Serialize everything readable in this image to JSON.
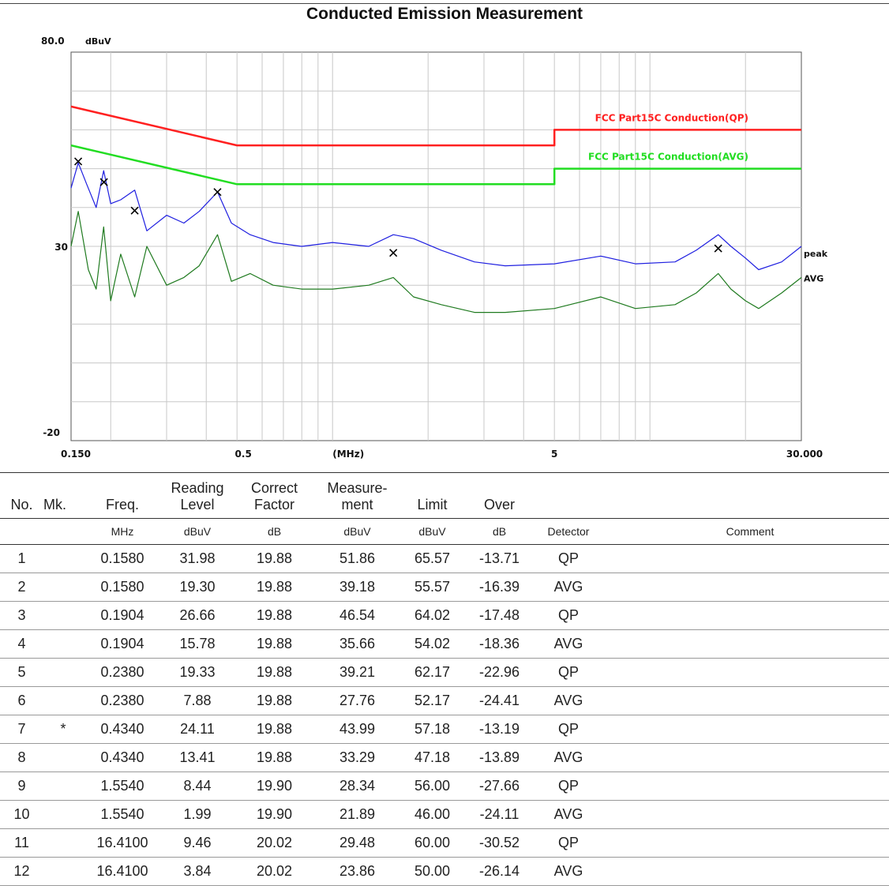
{
  "chart_data": {
    "type": "line",
    "title": "Conducted Emission Measurement",
    "ylabel": "dBuV",
    "xlabel": "(MHz)",
    "x_scale": "log",
    "xlim": [
      0.15,
      30.0
    ],
    "ylim": [
      -20,
      80
    ],
    "y_ticks": [
      "80.0",
      "30",
      "-20"
    ],
    "x_ticks": [
      "0.150",
      "0.5",
      "(MHz)",
      "5",
      "30.000"
    ],
    "x_tick_values": [
      0.15,
      0.5,
      1.0,
      5,
      30.0
    ],
    "grid": true,
    "series": [
      {
        "name": "FCC Part15C Conduction(QP)",
        "color": "#ff2020",
        "x": [
          0.15,
          0.5,
          0.5,
          5,
          5,
          30
        ],
        "y": [
          66,
          56,
          56,
          56,
          60,
          60
        ]
      },
      {
        "name": "FCC Part15C Conduction(AVG)",
        "color": "#22dd22",
        "x": [
          0.15,
          0.5,
          0.5,
          5,
          5,
          30
        ],
        "y": [
          56,
          46,
          46,
          46,
          50,
          50
        ]
      },
      {
        "name": "peak",
        "color": "#1f1fe0",
        "x": [
          0.15,
          0.158,
          0.168,
          0.18,
          0.19,
          0.2,
          0.215,
          0.238,
          0.26,
          0.3,
          0.34,
          0.38,
          0.434,
          0.48,
          0.55,
          0.65,
          0.8,
          1.0,
          1.3,
          1.554,
          1.8,
          2.2,
          2.8,
          3.5,
          5.0,
          7.0,
          9.0,
          12.0,
          14.0,
          16.41,
          18.0,
          20.0,
          22.0,
          26.0,
          30.0
        ],
        "y": [
          45,
          51.5,
          46,
          40,
          49.5,
          41,
          42,
          44.5,
          34,
          38,
          36,
          39,
          44,
          36,
          33,
          31,
          30,
          31,
          30,
          33,
          32,
          29,
          26,
          25,
          25.5,
          27.5,
          25.5,
          26,
          29,
          33,
          30,
          27,
          24,
          26,
          30
        ]
      },
      {
        "name": "AVG",
        "color": "#1f7a1f",
        "x": [
          0.15,
          0.158,
          0.17,
          0.18,
          0.19,
          0.2,
          0.215,
          0.238,
          0.26,
          0.3,
          0.34,
          0.38,
          0.434,
          0.48,
          0.55,
          0.65,
          0.8,
          1.0,
          1.3,
          1.554,
          1.8,
          2.2,
          2.8,
          3.5,
          5.0,
          7.0,
          9.0,
          12.0,
          14.0,
          16.41,
          18.0,
          20.0,
          22.0,
          26.0,
          30.0
        ],
        "y": [
          30,
          39,
          24,
          19,
          35,
          16,
          28,
          17,
          30,
          20,
          22,
          25,
          33,
          21,
          23,
          20,
          19,
          19,
          20,
          22,
          17,
          15,
          13,
          13,
          14,
          17,
          14,
          15,
          18,
          23,
          19,
          16,
          14,
          18,
          22
        ]
      }
    ],
    "markers": [
      {
        "x": 0.158,
        "y": 51.86
      },
      {
        "x": 0.1904,
        "y": 46.54
      },
      {
        "x": 0.238,
        "y": 39.21
      },
      {
        "x": 0.434,
        "y": 43.99
      },
      {
        "x": 1.554,
        "y": 28.34
      },
      {
        "x": 16.41,
        "y": 29.48
      }
    ],
    "legend_labels": {
      "qp_limit": "FCC Part15C Conduction(QP)",
      "avg_limit": "FCC Part15C Conduction(AVG)",
      "peak": "peak",
      "avg": "AVG"
    }
  },
  "table": {
    "headers": {
      "no": "No.",
      "mk": "Mk.",
      "freq": "Freq.",
      "reading_1": "Reading",
      "reading_2": "Level",
      "correct_1": "Correct",
      "correct_2": "Factor",
      "meas_1": "Measure-",
      "meas_2": "ment",
      "limit": "Limit",
      "over": "Over"
    },
    "units": {
      "freq": "MHz",
      "reading": "dBuV",
      "correct": "dB",
      "meas": "dBuV",
      "limit": "dBuV",
      "over": "dB",
      "detector": "Detector",
      "comment": "Comment"
    },
    "rows": [
      {
        "no": "1",
        "mk": "",
        "freq": "0.1580",
        "reading": "31.98",
        "correct": "19.88",
        "meas": "51.86",
        "limit": "65.57",
        "over": "-13.71",
        "detector": "QP"
      },
      {
        "no": "2",
        "mk": "",
        "freq": "0.1580",
        "reading": "19.30",
        "correct": "19.88",
        "meas": "39.18",
        "limit": "55.57",
        "over": "-16.39",
        "detector": "AVG"
      },
      {
        "no": "3",
        "mk": "",
        "freq": "0.1904",
        "reading": "26.66",
        "correct": "19.88",
        "meas": "46.54",
        "limit": "64.02",
        "over": "-17.48",
        "detector": "QP"
      },
      {
        "no": "4",
        "mk": "",
        "freq": "0.1904",
        "reading": "15.78",
        "correct": "19.88",
        "meas": "35.66",
        "limit": "54.02",
        "over": "-18.36",
        "detector": "AVG"
      },
      {
        "no": "5",
        "mk": "",
        "freq": "0.2380",
        "reading": "19.33",
        "correct": "19.88",
        "meas": "39.21",
        "limit": "62.17",
        "over": "-22.96",
        "detector": "QP"
      },
      {
        "no": "6",
        "mk": "",
        "freq": "0.2380",
        "reading": "7.88",
        "correct": "19.88",
        "meas": "27.76",
        "limit": "52.17",
        "over": "-24.41",
        "detector": "AVG"
      },
      {
        "no": "7",
        "mk": "*",
        "freq": "0.4340",
        "reading": "24.11",
        "correct": "19.88",
        "meas": "43.99",
        "limit": "57.18",
        "over": "-13.19",
        "detector": "QP"
      },
      {
        "no": "8",
        "mk": "",
        "freq": "0.4340",
        "reading": "13.41",
        "correct": "19.88",
        "meas": "33.29",
        "limit": "47.18",
        "over": "-13.89",
        "detector": "AVG"
      },
      {
        "no": "9",
        "mk": "",
        "freq": "1.5540",
        "reading": "8.44",
        "correct": "19.90",
        "meas": "28.34",
        "limit": "56.00",
        "over": "-27.66",
        "detector": "QP"
      },
      {
        "no": "10",
        "mk": "",
        "freq": "1.5540",
        "reading": "1.99",
        "correct": "19.90",
        "meas": "21.89",
        "limit": "46.00",
        "over": "-24.11",
        "detector": "AVG"
      },
      {
        "no": "11",
        "mk": "",
        "freq": "16.4100",
        "reading": "9.46",
        "correct": "20.02",
        "meas": "29.48",
        "limit": "60.00",
        "over": "-30.52",
        "detector": "QP"
      },
      {
        "no": "12",
        "mk": "",
        "freq": "16.4100",
        "reading": "3.84",
        "correct": "20.02",
        "meas": "23.86",
        "limit": "50.00",
        "over": "-26.14",
        "detector": "AVG"
      }
    ]
  }
}
